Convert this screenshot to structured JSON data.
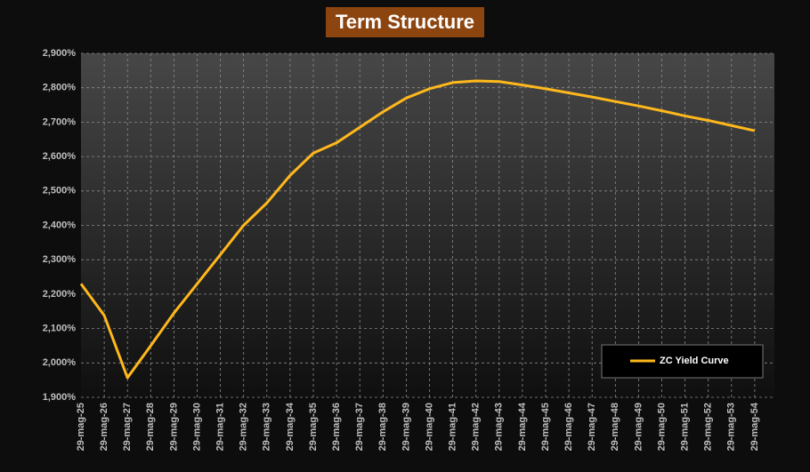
{
  "chart_data": {
    "type": "line",
    "title": "Term Structure",
    "categories": [
      "29-mag-25",
      "29-mag-26",
      "29-mag-27",
      "29-mag-28",
      "29-mag-29",
      "29-mag-30",
      "29-mag-31",
      "29-mag-32",
      "29-mag-33",
      "29-mag-34",
      "29-mag-35",
      "29-mag-36",
      "29-mag-37",
      "29-mag-38",
      "29-mag-39",
      "29-mag-40",
      "29-mag-41",
      "29-mag-42",
      "29-mag-43",
      "29-mag-44",
      "29-mag-45",
      "29-mag-46",
      "29-mag-47",
      "29-mag-48",
      "29-mag-49",
      "29-mag-50",
      "29-mag-51",
      "29-mag-52",
      "29-mag-53",
      "29-mag-54"
    ],
    "series": [
      {
        "name": "ZC Yield Curve",
        "color": "#ffb81c",
        "values": [
          2.23,
          2.138,
          1.957,
          2.05,
          2.145,
          2.23,
          2.315,
          2.4,
          2.465,
          2.545,
          2.61,
          2.64,
          2.685,
          2.73,
          2.77,
          2.797,
          2.815,
          2.82,
          2.818,
          2.808,
          2.797,
          2.785,
          2.773,
          2.76,
          2.747,
          2.733,
          2.718,
          2.705,
          2.69,
          2.675
        ]
      }
    ],
    "ylim": [
      1.9,
      2.9
    ],
    "yticks": [
      {
        "value": 1.9,
        "label": "1,900%"
      },
      {
        "value": 2.0,
        "label": "2,000%"
      },
      {
        "value": 2.1,
        "label": "2,100%"
      },
      {
        "value": 2.2,
        "label": "2,200%"
      },
      {
        "value": 2.3,
        "label": "2,300%"
      },
      {
        "value": 2.4,
        "label": "2,400%"
      },
      {
        "value": 2.5,
        "label": "2,500%"
      },
      {
        "value": 2.6,
        "label": "2,600%"
      },
      {
        "value": 2.7,
        "label": "2,700%"
      },
      {
        "value": 2.8,
        "label": "2,800%"
      },
      {
        "value": 2.9,
        "label": "2,900%"
      }
    ],
    "grid": true
  }
}
